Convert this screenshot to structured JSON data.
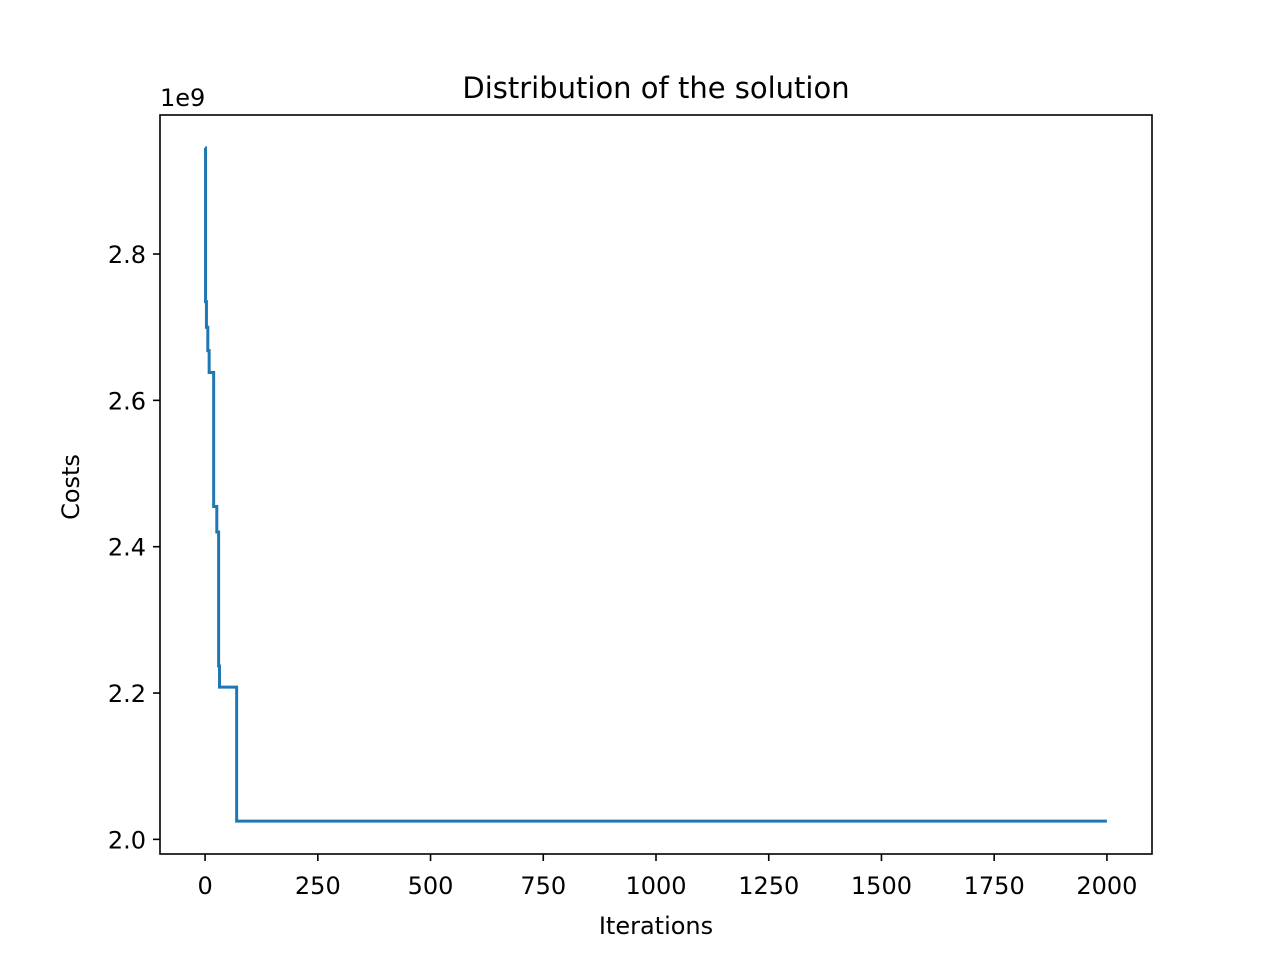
{
  "chart_data": {
    "type": "line",
    "title": "Distribution of the solution",
    "xlabel": "Iterations",
    "ylabel": "Costs",
    "y_offset_label": "1e9",
    "xlim": [
      -100,
      2100
    ],
    "ylim": [
      1.98,
      2.99
    ],
    "xticks": [
      0,
      250,
      500,
      750,
      1000,
      1250,
      1500,
      1750,
      2000
    ],
    "xtick_labels": [
      "0",
      "250",
      "500",
      "750",
      "1000",
      "1250",
      "1500",
      "1750",
      "2000"
    ],
    "yticks": [
      2.0,
      2.2,
      2.4,
      2.6,
      2.8
    ],
    "ytick_labels": [
      "2.0",
      "2.2",
      "2.4",
      "2.6",
      "2.8"
    ],
    "grid": false,
    "color": "#1f77b4",
    "series": [
      {
        "x": [
          0,
          1,
          1,
          3,
          3,
          6,
          6,
          9,
          9,
          12,
          12,
          19,
          19,
          26,
          26,
          30,
          30,
          32,
          32,
          70,
          70,
          2000
        ],
        "y": [
          2.945,
          2.945,
          2.735,
          2.735,
          2.7,
          2.7,
          2.668,
          2.668,
          2.638,
          2.638,
          2.638,
          2.638,
          2.455,
          2.455,
          2.42,
          2.42,
          2.237,
          2.237,
          2.208,
          2.208,
          2.025,
          2.025
        ]
      }
    ]
  }
}
